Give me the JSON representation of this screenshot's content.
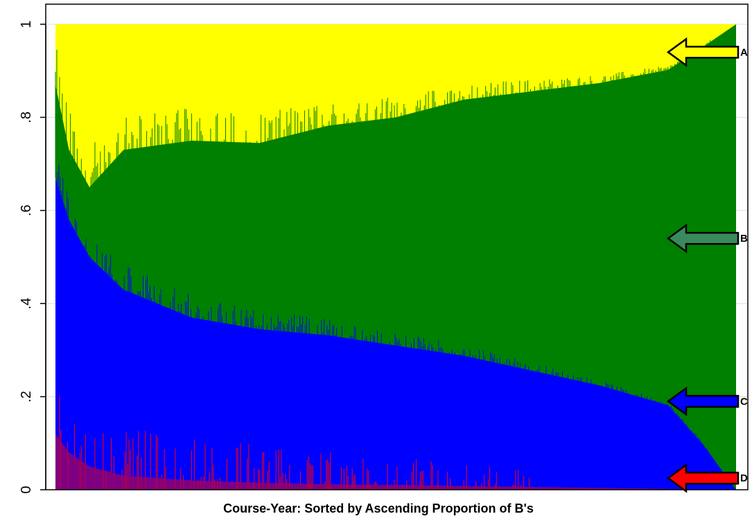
{
  "chart_data": {
    "type": "area",
    "title": "",
    "xlabel": "Course-Year: Sorted by Ascending Proportion of B's",
    "ylabel": "",
    "ylim": [
      0,
      1
    ],
    "y_ticks": [
      {
        "value": 0,
        "label": "0"
      },
      {
        "value": 0.2,
        "label": ".2"
      },
      {
        "value": 0.4,
        "label": ".4"
      },
      {
        "value": 0.6,
        "label": ".6"
      },
      {
        "value": 0.8,
        "label": ".8"
      },
      {
        "value": 1,
        "label": "1"
      }
    ],
    "grid": true,
    "stacked": true,
    "x": [
      0,
      0.02,
      0.05,
      0.1,
      0.2,
      0.3,
      0.4,
      0.5,
      0.6,
      0.7,
      0.8,
      0.9,
      0.95,
      1.0
    ],
    "series": [
      {
        "name": "D",
        "color": "#ff0000",
        "values": [
          0.12,
          0.08,
          0.05,
          0.03,
          0.02,
          0.015,
          0.012,
          0.01,
          0.008,
          0.006,
          0.004,
          0.002,
          0.0,
          0.0
        ]
      },
      {
        "name": "C",
        "color": "#0000ff",
        "values": [
          0.55,
          0.5,
          0.45,
          0.4,
          0.35,
          0.33,
          0.32,
          0.3,
          0.28,
          0.25,
          0.22,
          0.18,
          0.1,
          0.0
        ]
      },
      {
        "name": "B",
        "color": "#008000",
        "values": [
          0.2,
          0.15,
          0.15,
          0.3,
          0.38,
          0.4,
          0.45,
          0.49,
          0.55,
          0.6,
          0.65,
          0.72,
          0.85,
          1.0
        ]
      },
      {
        "name": "A",
        "color": "#ffff00",
        "values": [
          0.13,
          0.27,
          0.35,
          0.27,
          0.25,
          0.255,
          0.218,
          0.2,
          0.182,
          0.144,
          0.126,
          0.098,
          0.05,
          0.0
        ]
      }
    ],
    "stacked_boundaries": {
      "x": [
        0,
        0.02,
        0.05,
        0.1,
        0.2,
        0.3,
        0.4,
        0.5,
        0.6,
        0.7,
        0.8,
        0.9,
        0.95,
        1.0
      ],
      "D_top": [
        0.12,
        0.08,
        0.05,
        0.03,
        0.02,
        0.015,
        0.012,
        0.01,
        0.008,
        0.006,
        0.004,
        0.002,
        0.0,
        0.0
      ],
      "C_top": [
        0.67,
        0.58,
        0.5,
        0.43,
        0.37,
        0.345,
        0.332,
        0.31,
        0.288,
        0.256,
        0.224,
        0.182,
        0.1,
        0.0
      ],
      "B_top": [
        0.87,
        0.73,
        0.65,
        0.73,
        0.75,
        0.745,
        0.782,
        0.8,
        0.838,
        0.856,
        0.874,
        0.902,
        0.95,
        1.0
      ]
    },
    "legend": [
      {
        "label": "A",
        "color": "#ffff00",
        "y": 0.94
      },
      {
        "label": "B",
        "color": "#3a8a5e",
        "y": 0.54
      },
      {
        "label": "C",
        "color": "#0000ff",
        "y": 0.19
      },
      {
        "label": "D",
        "color": "#ff0000",
        "y": 0.025
      }
    ]
  }
}
